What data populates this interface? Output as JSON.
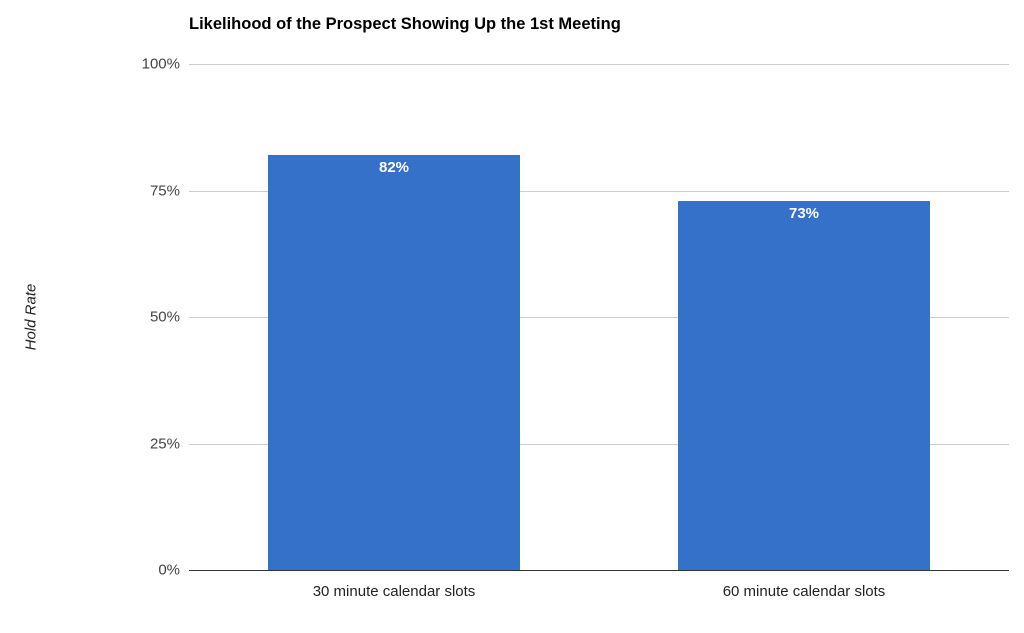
{
  "chart_data": {
    "type": "bar",
    "title": "Likelihood of the Prospect Showing Up the 1st Meeting",
    "xlabel": "",
    "ylabel": "Hold Rate",
    "categories": [
      "30 minute calendar slots",
      "60 minute calendar slots"
    ],
    "values": [
      82,
      73
    ],
    "value_labels": [
      "82%",
      "73%"
    ],
    "ylim": [
      0,
      100
    ],
    "yticks": [
      0,
      25,
      50,
      75,
      100
    ],
    "ytick_labels": [
      "0%",
      "25%",
      "50%",
      "75%",
      "100%"
    ],
    "grid": true,
    "legend": null,
    "bar_color": "#3570C9"
  },
  "title": "Likelihood of the Prospect Showing Up the 1st Meeting",
  "y_axis": {
    "label": "Hold Rate",
    "ticks": [
      "100%",
      "75%",
      "50%",
      "25%",
      "0%"
    ]
  },
  "bars": [
    {
      "category": "30 minute calendar slots",
      "value_label": "82%"
    },
    {
      "category": "60 minute calendar slots",
      "value_label": "73%"
    }
  ],
  "colors": {
    "bar": "#3570C9",
    "gridline": "#cccccc",
    "baseline": "#333333"
  }
}
